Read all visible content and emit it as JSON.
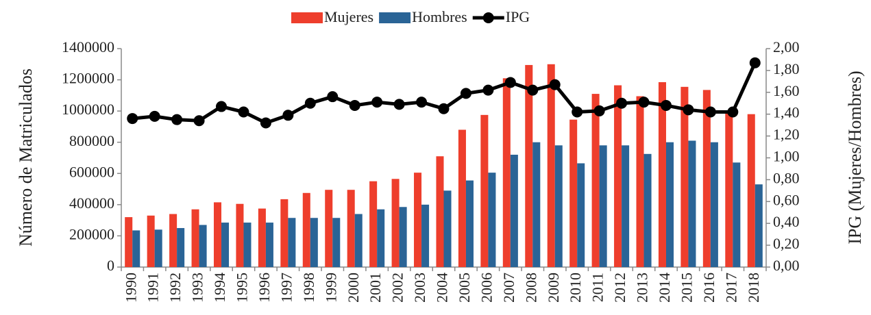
{
  "chart_data": {
    "type": "bar_line",
    "categories": [
      "1990",
      "1991",
      "1992",
      "1993",
      "1994",
      "1995",
      "1996",
      "1997",
      "1998",
      "1999",
      "2000",
      "2001",
      "2002",
      "2003",
      "2004",
      "2005",
      "2006",
      "2007",
      "2008",
      "2009",
      "2010",
      "2011",
      "2012",
      "2013",
      "2014",
      "2015",
      "2016",
      "2017",
      "2018"
    ],
    "series": [
      {
        "name": "Mujeres",
        "color": "#ee3e2c",
        "type": "bar",
        "values": [
          320000,
          330000,
          340000,
          370000,
          415000,
          405000,
          375000,
          435000,
          475000,
          495000,
          495000,
          550000,
          565000,
          605000,
          710000,
          880000,
          975000,
          1210000,
          1295000,
          1300000,
          945000,
          1110000,
          1165000,
          1095000,
          1185000,
          1155000,
          1135000,
          1000000,
          980000
        ]
      },
      {
        "name": "Hombres",
        "color": "#2a6496",
        "type": "bar",
        "values": [
          235000,
          240000,
          250000,
          270000,
          285000,
          285000,
          285000,
          315000,
          315000,
          315000,
          340000,
          370000,
          385000,
          400000,
          490000,
          555000,
          605000,
          720000,
          800000,
          780000,
          665000,
          780000,
          780000,
          725000,
          800000,
          810000,
          800000,
          670000,
          530000
        ]
      },
      {
        "name": "IPG",
        "color": "#000000",
        "type": "line",
        "axis": "y2",
        "values": [
          1.36,
          1.38,
          1.35,
          1.34,
          1.47,
          1.42,
          1.32,
          1.39,
          1.5,
          1.56,
          1.48,
          1.51,
          1.49,
          1.51,
          1.45,
          1.59,
          1.62,
          1.69,
          1.62,
          1.67,
          1.42,
          1.43,
          1.5,
          1.51,
          1.48,
          1.44,
          1.42,
          1.42,
          1.87
        ]
      }
    ],
    "ylabel": "Número de Matriculados",
    "y2label": "IPG (Mujeres/Hombres)",
    "ylim": [
      0,
      1400000
    ],
    "yticks": [
      0,
      200000,
      400000,
      600000,
      800000,
      1000000,
      1200000,
      1400000
    ],
    "y2lim": [
      0,
      2
    ],
    "y2ticks": [
      {
        "value": 0,
        "label": "0,00"
      },
      {
        "value": 0.2,
        "label": "0,20"
      },
      {
        "value": 0.4,
        "label": "0,40"
      },
      {
        "value": 0.6,
        "label": "0,60"
      },
      {
        "value": 0.8,
        "label": "0,80"
      },
      {
        "value": 1,
        "label": "1,00"
      },
      {
        "value": 1.2,
        "label": "1,20"
      },
      {
        "value": 1.4,
        "label": "1,40"
      },
      {
        "value": 1.6,
        "label": "1,60"
      },
      {
        "value": 1.8,
        "label": "1,80"
      },
      {
        "value": 2,
        "label": "2,00"
      }
    ],
    "legend": "top"
  }
}
